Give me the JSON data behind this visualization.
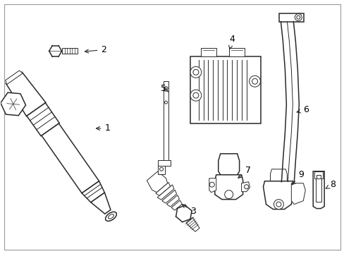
{
  "background_color": "#ffffff",
  "border_color": "#aaaaaa",
  "line_color": "#2a2a2a",
  "label_color": "#000000",
  "fig_width": 4.89,
  "fig_height": 3.6,
  "dpi": 100
}
